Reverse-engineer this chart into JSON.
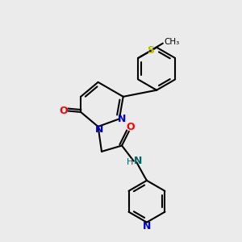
{
  "bg_color": "#ebebeb",
  "bond_color": "#000000",
  "N_color": "#0000cc",
  "O_color": "#ff0000",
  "S_color": "#bbbb00",
  "NH_color": "#006666",
  "lw": 1.5,
  "fig_w": 3.0,
  "fig_h": 3.0,
  "dpi": 100,
  "xlim": [
    0,
    10
  ],
  "ylim": [
    0,
    10
  ]
}
